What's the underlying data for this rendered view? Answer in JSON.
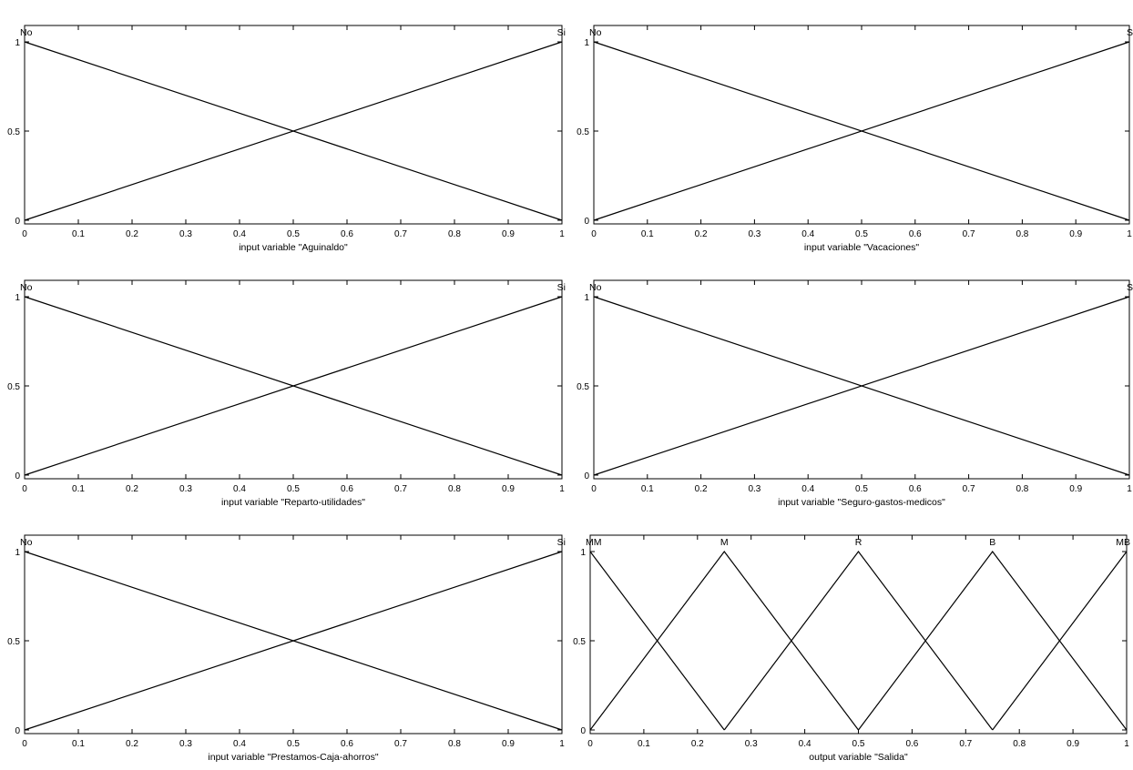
{
  "charts": [
    {
      "type": "line",
      "xlabel": "input variable \"Aguinaldo\"",
      "xlim": [
        0,
        1
      ],
      "ylim": [
        0,
        1
      ],
      "xticks": [
        "0",
        "0.1",
        "0.2",
        "0.3",
        "0.4",
        "0.5",
        "0.6",
        "0.7",
        "0.8",
        "0.9",
        "1"
      ],
      "yticks": [
        "0",
        "0.5",
        "1"
      ],
      "series": [
        {
          "name": "No",
          "x": [
            0,
            1
          ],
          "y": [
            1,
            0
          ]
        },
        {
          "name": "Si",
          "x": [
            0,
            1
          ],
          "y": [
            0,
            1
          ]
        }
      ]
    },
    {
      "type": "line",
      "xlabel": "input variable \"Vacaciones\"",
      "xlim": [
        0,
        1
      ],
      "ylim": [
        0,
        1
      ],
      "xticks": [
        "0",
        "0.1",
        "0.2",
        "0.3",
        "0.4",
        "0.5",
        "0.6",
        "0.7",
        "0.8",
        "0.9",
        "1"
      ],
      "yticks": [
        "0",
        "0.5",
        "1"
      ],
      "series": [
        {
          "name": "No",
          "x": [
            0,
            1
          ],
          "y": [
            1,
            0
          ]
        },
        {
          "name": "S",
          "x": [
            0,
            1
          ],
          "y": [
            0,
            1
          ]
        }
      ]
    },
    {
      "type": "line",
      "xlabel": "input variable \"Reparto-utilidades\"",
      "xlim": [
        0,
        1
      ],
      "ylim": [
        0,
        1
      ],
      "xticks": [
        "0",
        "0.1",
        "0.2",
        "0.3",
        "0.4",
        "0.5",
        "0.6",
        "0.7",
        "0.8",
        "0.9",
        "1"
      ],
      "yticks": [
        "0",
        "0.5",
        "1"
      ],
      "series": [
        {
          "name": "No",
          "x": [
            0,
            1
          ],
          "y": [
            1,
            0
          ]
        },
        {
          "name": "Si",
          "x": [
            0,
            1
          ],
          "y": [
            0,
            1
          ]
        }
      ]
    },
    {
      "type": "line",
      "xlabel": "input variable \"Seguro-gastos-medicos\"",
      "xlim": [
        0,
        1
      ],
      "ylim": [
        0,
        1
      ],
      "xticks": [
        "0",
        "0.1",
        "0.2",
        "0.3",
        "0.4",
        "0.5",
        "0.6",
        "0.7",
        "0.8",
        "0.9",
        "1"
      ],
      "yticks": [
        "0",
        "0.5",
        "1"
      ],
      "series": [
        {
          "name": "No",
          "x": [
            0,
            1
          ],
          "y": [
            1,
            0
          ]
        },
        {
          "name": "S",
          "x": [
            0,
            1
          ],
          "y": [
            0,
            1
          ]
        }
      ]
    },
    {
      "type": "line",
      "xlabel": "input variable \"Prestamos-Caja-ahorros\"",
      "xlim": [
        0,
        1
      ],
      "ylim": [
        0,
        1
      ],
      "xticks": [
        "0",
        "0.1",
        "0.2",
        "0.3",
        "0.4",
        "0.5",
        "0.6",
        "0.7",
        "0.8",
        "0.9",
        "1"
      ],
      "yticks": [
        "0",
        "0.5",
        "1"
      ],
      "series": [
        {
          "name": "No",
          "x": [
            0,
            1
          ],
          "y": [
            1,
            0
          ]
        },
        {
          "name": "Si",
          "x": [
            0,
            1
          ],
          "y": [
            0,
            1
          ]
        }
      ]
    },
    {
      "type": "line",
      "xlabel": "output variable \"Salida\"",
      "xlim": [
        0,
        1
      ],
      "ylim": [
        0,
        1
      ],
      "xticks": [
        "0",
        "0.1",
        "0.2",
        "0.3",
        "0.4",
        "0.5",
        "0.6",
        "0.7",
        "0.8",
        "0.9",
        "1"
      ],
      "yticks": [
        "0",
        "0.5",
        "1"
      ],
      "series": [
        {
          "name": "MM",
          "x": [
            0,
            0.25
          ],
          "y": [
            1,
            0
          ]
        },
        {
          "name": "M",
          "x": [
            0,
            0.25,
            0.5
          ],
          "y": [
            0,
            1,
            0
          ]
        },
        {
          "name": "R",
          "x": [
            0.25,
            0.5,
            0.75
          ],
          "y": [
            0,
            1,
            0
          ]
        },
        {
          "name": "B",
          "x": [
            0.5,
            0.75,
            1
          ],
          "y": [
            0,
            1,
            0
          ]
        },
        {
          "name": "MB",
          "x": [
            0.75,
            1
          ],
          "y": [
            0,
            1
          ]
        }
      ]
    }
  ]
}
